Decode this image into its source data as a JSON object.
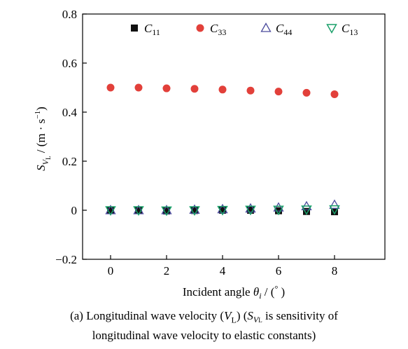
{
  "chart_data": {
    "type": "scatter",
    "xlabel": "Incident angle θi / (°)",
    "ylabel": "SVL / (m · s−1)",
    "xlim": [
      -1,
      9.8
    ],
    "ylim": [
      -0.2,
      0.8
    ],
    "xticks": [
      0,
      2,
      4,
      6,
      8
    ],
    "yticks": [
      0.8,
      0.6,
      0.4,
      0.2,
      0,
      -0.2
    ],
    "ytick_labels": [
      "0.8",
      "0.6",
      "0.4",
      "0.2",
      "0",
      "−0.2"
    ],
    "grid": false,
    "legend_position": "top",
    "x": [
      0,
      1,
      2,
      3,
      4,
      5,
      6,
      7,
      8
    ],
    "series": [
      {
        "name": "C11",
        "marker": "square",
        "color": "#111111",
        "values": [
          0.0,
          0.0,
          -0.003,
          -0.001,
          0.0,
          0.0,
          -0.002,
          -0.005,
          -0.006
        ]
      },
      {
        "name": "C33",
        "marker": "circle",
        "color": "#e2403a",
        "values": [
          0.5,
          0.5,
          0.497,
          0.495,
          0.492,
          0.488,
          0.484,
          0.479,
          0.473
        ]
      },
      {
        "name": "C44",
        "marker": "triangle-up",
        "color": "#4a4a9c",
        "values": [
          0.0,
          0.0,
          0.0,
          0.002,
          0.004,
          0.007,
          0.011,
          0.016,
          0.022
        ]
      },
      {
        "name": "C13",
        "marker": "triangle-down",
        "color": "#1aa06a",
        "values": [
          0.0,
          0.0,
          -0.001,
          0.0,
          0.001,
          0.002,
          0.002,
          0.003,
          0.004
        ]
      }
    ]
  },
  "caption": {
    "line1_prefix": "(a) Longitudinal wave velocity (",
    "line1_var": "V",
    "line1_var_sub": "L",
    "line1_mid": ") (",
    "line1_s": "S",
    "line1_s_v": "V",
    "line1_s_l": "L",
    "line1_suffix": " is sensitivity of",
    "line2": "longitudinal wave velocity to elastic constants)"
  }
}
